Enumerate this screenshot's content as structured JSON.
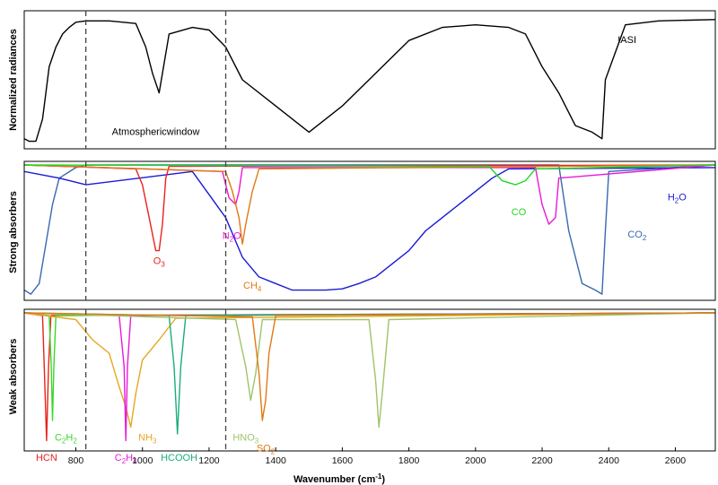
{
  "chart_data": {
    "type": "line",
    "xlabel": "Wavenumber (cm⁻¹)",
    "xlim": [
      645,
      2720
    ],
    "xticks": [
      800,
      1000,
      1200,
      1400,
      1600,
      1800,
      2000,
      2200,
      2400,
      2600
    ],
    "atmospheric_window": [
      830,
      1250
    ],
    "panels": [
      {
        "ylabel": "Normalized radiances",
        "series": [
          {
            "name": "IASI",
            "color": "#000000",
            "x": [
              645,
              660,
              680,
              700,
              720,
              740,
              760,
              780,
              800,
              830,
              900,
              980,
              1010,
              1030,
              1050,
              1060,
              1080,
              1150,
              1200,
              1250,
              1300,
              1400,
              1500,
              1600,
              1700,
              1800,
              1900,
              2000,
              2100,
              2150,
              2200,
              2250,
              2300,
              2350,
              2380,
              2390,
              2450,
              2550,
              2720
            ],
            "y": [
              0.05,
              0.03,
              0.03,
              0.2,
              0.6,
              0.75,
              0.85,
              0.9,
              0.94,
              0.95,
              0.95,
              0.93,
              0.75,
              0.55,
              0.4,
              0.55,
              0.85,
              0.9,
              0.88,
              0.75,
              0.5,
              0.3,
              0.1,
              0.3,
              0.55,
              0.8,
              0.9,
              0.92,
              0.9,
              0.85,
              0.6,
              0.4,
              0.15,
              0.1,
              0.05,
              0.5,
              0.92,
              0.95,
              0.96
            ]
          }
        ],
        "annotations": [
          {
            "text": "IASI",
            "x": 2455,
            "y": 0.78
          },
          {
            "text": "Atmospheric window",
            "x": 1040,
            "y": 0.08
          }
        ]
      },
      {
        "ylabel": "Strong absorbers",
        "series": [
          {
            "name": "CO2",
            "color": "#3a67b3",
            "x": [
              645,
              665,
              690,
              710,
              730,
              750,
              800,
              830,
              2250,
              2280,
              2320,
              2360,
              2380,
              2390,
              2400,
              2720
            ],
            "y": [
              0.05,
              0.02,
              0.1,
              0.4,
              0.7,
              0.9,
              0.98,
              1.0,
              1.0,
              0.5,
              0.1,
              0.05,
              0.02,
              0.5,
              0.95,
              1.0
            ]
          },
          {
            "name": "H2O",
            "color": "#1a1ad6",
            "x": [
              645,
              750,
              830,
              1150,
              1250,
              1300,
              1350,
              1400,
              1450,
              1500,
              1550,
              1600,
              1650,
              1700,
              1750,
              1800,
              1850,
              1900,
              1950,
              2000,
              2050,
              2100,
              2720
            ],
            "y": [
              0.95,
              0.9,
              0.85,
              0.95,
              0.6,
              0.3,
              0.15,
              0.1,
              0.05,
              0.05,
              0.05,
              0.06,
              0.1,
              0.15,
              0.25,
              0.35,
              0.5,
              0.6,
              0.7,
              0.8,
              0.9,
              0.97,
              0.98
            ]
          },
          {
            "name": "O3",
            "color": "#e8221c",
            "x": [
              645,
              980,
              1000,
              1020,
              1040,
              1050,
              1060,
              1070,
              1080,
              2720
            ],
            "y": [
              1.0,
              0.97,
              0.85,
              0.6,
              0.35,
              0.35,
              0.55,
              0.9,
              0.99,
              1.0
            ]
          },
          {
            "name": "N2O",
            "color": "#e81ad8",
            "x": [
              645,
              1240,
              1260,
              1280,
              1290,
              1300,
              2180,
              2200,
              2220,
              2240,
              2250,
              2720
            ],
            "y": [
              1.0,
              0.95,
              0.75,
              0.7,
              0.8,
              0.98,
              0.98,
              0.7,
              0.55,
              0.6,
              0.9,
              1.0
            ]
          },
          {
            "name": "CH4",
            "color": "#e07a14",
            "x": [
              645,
              1250,
              1270,
              1290,
              1300,
              1310,
              1330,
              1350,
              2720
            ],
            "y": [
              1.0,
              0.95,
              0.8,
              0.6,
              0.4,
              0.55,
              0.8,
              0.97,
              1.0
            ]
          },
          {
            "name": "CO",
            "color": "#1ed81e",
            "x": [
              645,
              2040,
              2080,
              2120,
              2150,
              2180,
              2720
            ],
            "y": [
              1.0,
              0.99,
              0.88,
              0.85,
              0.88,
              0.97,
              1.0
            ]
          }
        ],
        "annotations": [
          {
            "text": "O3",
            "x": 1050,
            "y": 0.25,
            "color": "#e8221c"
          },
          {
            "text": "N2O",
            "x": 1268,
            "y": 0.44,
            "color": "#e81ad8"
          },
          {
            "text": "CH4",
            "x": 1330,
            "y": 0.06,
            "color": "#e07a14"
          },
          {
            "text": "CO",
            "x": 2130,
            "y": 0.62,
            "color": "#1ed81e"
          },
          {
            "text": "H2O",
            "x": 2605,
            "y": 0.73,
            "color": "#1a1ad6"
          },
          {
            "text": "CO2",
            "x": 2485,
            "y": 0.45,
            "color": "#3a67b3"
          }
        ]
      },
      {
        "ylabel": "Weak absorbers",
        "series": [
          {
            "name": "HCN",
            "color": "#e8221c",
            "x": [
              645,
              700,
              705,
              712,
              718,
              725,
              2720
            ],
            "y": [
              1.0,
              0.98,
              0.6,
              0.05,
              0.6,
              0.98,
              1.0
            ]
          },
          {
            "name": "C2H2",
            "color": "#3ad82a",
            "x": [
              645,
              720,
              726,
              730,
              734,
              740,
              2720
            ],
            "y": [
              1.0,
              0.98,
              0.6,
              0.2,
              0.6,
              0.98,
              1.0
            ]
          },
          {
            "name": "NH3",
            "color": "#e8a623",
            "x": [
              645,
              800,
              850,
              900,
              930,
              950,
              965,
              980,
              1000,
              1050,
              1100,
              2720
            ],
            "y": [
              1.0,
              0.95,
              0.8,
              0.7,
              0.45,
              0.3,
              0.15,
              0.4,
              0.65,
              0.8,
              0.96,
              1.0
            ]
          },
          {
            "name": "C2H4",
            "color": "#e81ad8",
            "x": [
              645,
              930,
              945,
              950,
              955,
              965,
              2720
            ],
            "y": [
              1.0,
              0.98,
              0.6,
              0.05,
              0.6,
              0.98,
              1.0
            ]
          },
          {
            "name": "HCOOH",
            "color": "#1aae7a",
            "x": [
              645,
              1080,
              1095,
              1105,
              1115,
              1130,
              2720
            ],
            "y": [
              1.0,
              0.98,
              0.6,
              0.1,
              0.6,
              0.98,
              1.0
            ]
          },
          {
            "name": "HNO3",
            "color": "#9fc46a",
            "x": [
              645,
              1280,
              1310,
              1325,
              1340,
              1360,
              1680,
              1700,
              1710,
              1720,
              1740,
              2720
            ],
            "y": [
              1.0,
              0.95,
              0.6,
              0.35,
              0.55,
              0.95,
              0.95,
              0.5,
              0.15,
              0.4,
              0.95,
              1.0
            ]
          },
          {
            "name": "SO2",
            "color": "#e07a14",
            "x": [
              645,
              1330,
              1350,
              1360,
              1370,
              1380,
              1400,
              2720
            ],
            "y": [
              1.0,
              0.97,
              0.55,
              0.2,
              0.35,
              0.7,
              0.98,
              1.0
            ]
          }
        ],
        "annotations": [
          {
            "text": "HCN",
            "x": 712,
            "y": -0.1,
            "color": "#e8221c"
          },
          {
            "text": "C2H2",
            "x": 770,
            "y": 0.05,
            "color": "#3ad82a"
          },
          {
            "text": "NH3",
            "x": 1015,
            "y": 0.05,
            "color": "#e8a623"
          },
          {
            "text": "C2H4",
            "x": 950,
            "y": -0.1,
            "color": "#e81ad8"
          },
          {
            "text": "HCOOH",
            "x": 1110,
            "y": -0.1,
            "color": "#1aae7a"
          },
          {
            "text": "HNO3",
            "x": 1310,
            "y": 0.05,
            "color": "#9fc46a"
          },
          {
            "text": "SO2",
            "x": 1370,
            "y": -0.03,
            "color": "#e07a14"
          }
        ]
      }
    ]
  }
}
